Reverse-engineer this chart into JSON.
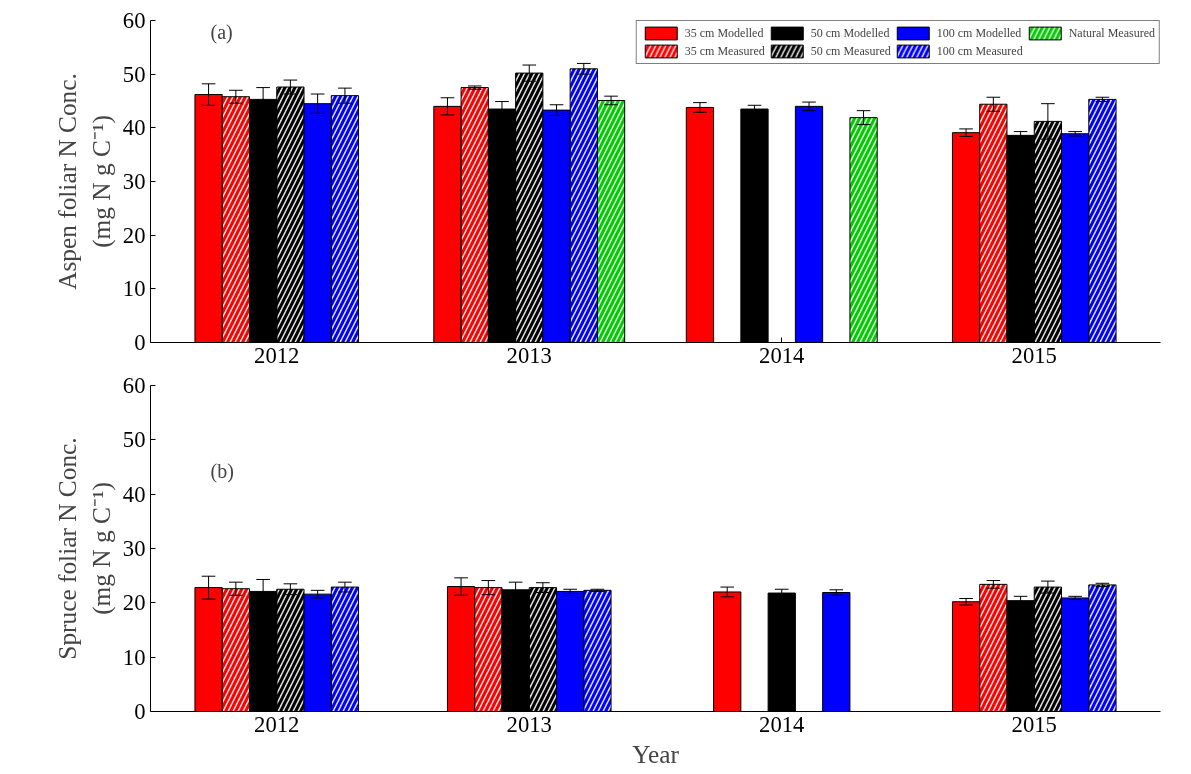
{
  "chart_data": [
    {
      "type": "bar",
      "annotations": [
        "(a)"
      ],
      "ylabel": "Aspen foliar N Conc.\n(mg N g C⁻¹)",
      "categories": [
        "2012",
        "2013",
        "2014",
        "2015"
      ],
      "ylim": [
        0,
        60
      ],
      "yticks": [
        0,
        10,
        20,
        30,
        40,
        50,
        60
      ],
      "grid": false,
      "legend": "top right",
      "series": [
        {
          "name": "35 cm Modelled",
          "color": "#ff0000",
          "values": [
            46.2,
            44.0,
            43.8,
            39.1
          ],
          "errors": [
            2.0,
            1.6,
            0.9,
            0.7
          ]
        },
        {
          "name": "35 cm Measured",
          "color": "#ff0000",
          "values": [
            45.8,
            47.5,
            null,
            44.4
          ],
          "errors": [
            1.2,
            0.3,
            null,
            1.3
          ]
        },
        {
          "name": "50 cm Modelled",
          "color": "#000000",
          "values": [
            45.3,
            43.5,
            43.5,
            38.6
          ],
          "errors": [
            2.2,
            1.4,
            0.7,
            0.7
          ]
        },
        {
          "name": "50 cm Measured",
          "color": "#000000",
          "values": [
            47.6,
            50.2,
            null,
            41.2
          ],
          "errors": [
            1.3,
            1.5,
            null,
            3.3
          ]
        },
        {
          "name": "100 cm Modelled",
          "color": "#0000ff",
          "values": [
            44.5,
            43.3,
            44.0,
            38.9
          ],
          "errors": [
            1.8,
            1.0,
            0.8,
            0.4
          ]
        },
        {
          "name": "100 cm Measured",
          "color": "#0000ff",
          "values": [
            46.0,
            51.0,
            null,
            45.3
          ],
          "errors": [
            1.4,
            1.0,
            null,
            0.4
          ]
        },
        {
          "name": "Natural Measured",
          "color": "#00cc00",
          "values": [
            null,
            45.1,
            41.9,
            null
          ],
          "errors": [
            null,
            0.8,
            1.3,
            null
          ]
        }
      ]
    },
    {
      "type": "bar",
      "annotations": [
        "(b)"
      ],
      "ylabel": "Spruce foliar N Conc.\n(mg N g C⁻¹)",
      "xlabel": "Year",
      "categories": [
        "2012",
        "2013",
        "2014",
        "2015"
      ],
      "ylim": [
        0,
        60
      ],
      "yticks": [
        0,
        10,
        20,
        30,
        40,
        50,
        60
      ],
      "grid": false,
      "series": [
        {
          "color": "#ff0000",
          "values": [
            22.8,
            23.0,
            22.0,
            20.2
          ],
          "errors": [
            2.1,
            1.6,
            0.9,
            0.6
          ]
        },
        {
          "color": "#ff0000",
          "values": [
            22.6,
            22.8,
            null,
            23.4
          ],
          "errors": [
            1.2,
            1.3,
            null,
            0.7
          ]
        },
        {
          "color": "#000000",
          "values": [
            22.1,
            22.4,
            21.8,
            20.4
          ],
          "errors": [
            2.2,
            1.4,
            0.7,
            0.8
          ]
        },
        {
          "color": "#000000",
          "values": [
            22.5,
            22.8,
            null,
            22.9
          ],
          "errors": [
            1.0,
            0.9,
            null,
            1.1
          ]
        },
        {
          "color": "#0000ff",
          "values": [
            21.6,
            22.1,
            21.9,
            20.9
          ],
          "errors": [
            0.7,
            0.4,
            0.5,
            0.3
          ]
        },
        {
          "color": "#0000ff",
          "values": [
            22.9,
            22.3,
            null,
            23.3
          ],
          "errors": [
            0.9,
            0.2,
            null,
            0.3
          ]
        }
      ]
    }
  ]
}
